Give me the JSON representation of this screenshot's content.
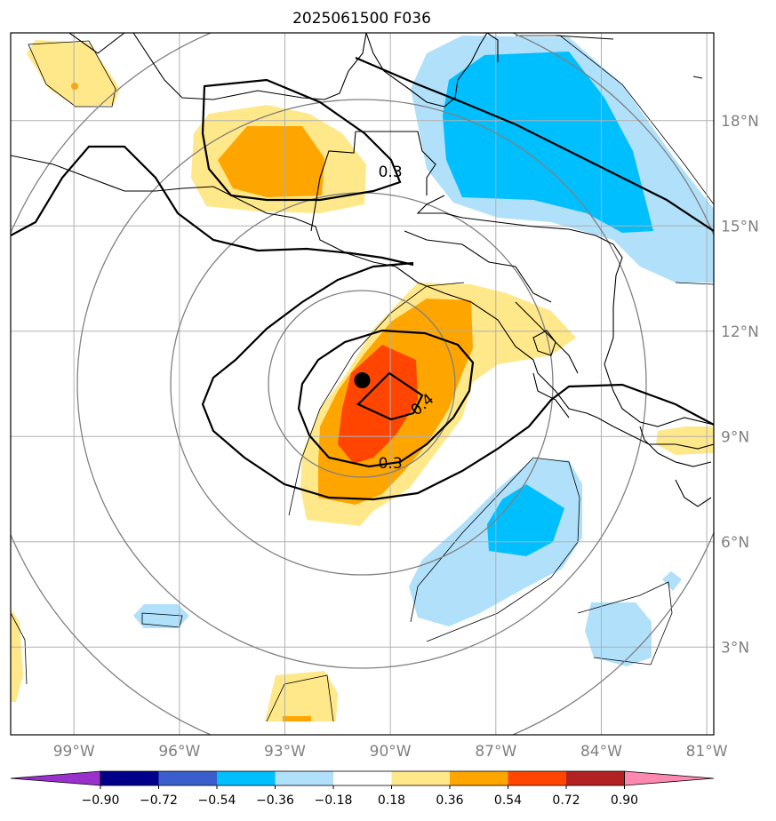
{
  "title": "2025061500 F036",
  "map": {
    "lon_ticks": [
      {
        "value": -99,
        "label": "99°W"
      },
      {
        "value": -96,
        "label": "96°W"
      },
      {
        "value": -93,
        "label": "93°W"
      },
      {
        "value": -90,
        "label": "90°W"
      },
      {
        "value": -87,
        "label": "87°W"
      },
      {
        "value": -84,
        "label": "84°W"
      },
      {
        "value": -81,
        "label": "81°W"
      }
    ],
    "lat_ticks": [
      {
        "value": 3,
        "label": "3°N"
      },
      {
        "value": 6,
        "label": "6°N"
      },
      {
        "value": 9,
        "label": "9°N"
      },
      {
        "value": 12,
        "label": "12°N"
      },
      {
        "value": 15,
        "label": "15°N"
      },
      {
        "value": 18,
        "label": "18°N"
      }
    ],
    "lon_range": [
      -100.8,
      -80.8
    ],
    "lat_range": [
      0.5,
      20.5
    ],
    "storm_center": {
      "lon": -90.8,
      "lat": 10.6
    },
    "contour_labels": [
      {
        "text": "0.3",
        "lon": -90.0,
        "lat": 16.4
      },
      {
        "text": "0.4",
        "lon": -89.0,
        "lat": 9.8
      },
      {
        "text": "0.3",
        "lon": -90.0,
        "lat": 8.1
      }
    ]
  },
  "colorbar": {
    "levels": [
      "−0.90",
      "−0.72",
      "−0.54",
      "−0.36",
      "−0.18",
      "0.18",
      "0.36",
      "0.54",
      "0.72",
      "0.90"
    ],
    "colors": [
      "#9932cc",
      "#00008b",
      "#3a5fcd",
      "#00bfff",
      "#b0e0fa",
      "#ffffff",
      "#ffe88a",
      "#ffa500",
      "#ff4500",
      "#b22222",
      "#ff88b0"
    ]
  },
  "colors": {
    "pos1": "#ffe88a",
    "pos2": "#ffa500",
    "pos3": "#ff4500",
    "neg1": "#b0e0fa",
    "neg2": "#00bfff",
    "grid": "#b0b0b0",
    "rings": "#808080"
  }
}
